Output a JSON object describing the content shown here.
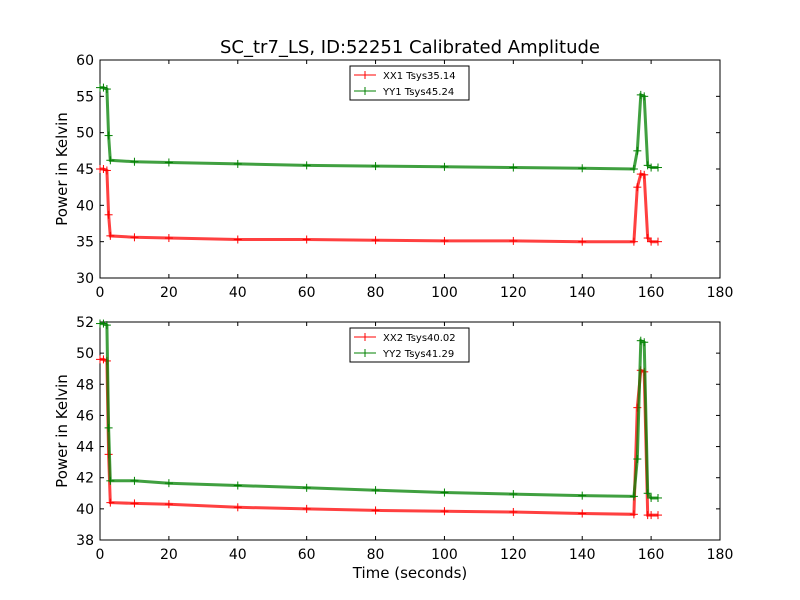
{
  "title": "SC_tr7_LS, ID:52251 Calibrated Amplitude",
  "chart_data": [
    {
      "type": "line",
      "title": "SC_tr7_LS, ID:52251 Calibrated Amplitude",
      "xlabel": "",
      "ylabel": "Power in Kelvin",
      "xlim": [
        0,
        180
      ],
      "ylim": [
        30,
        60
      ],
      "x_ticks": [
        "0",
        "20",
        "40",
        "60",
        "80",
        "100",
        "120",
        "140",
        "160",
        "180"
      ],
      "y_ticks": [
        "30",
        "35",
        "40",
        "45",
        "50",
        "55",
        "60"
      ],
      "grid": false,
      "legend_position": "top-center",
      "series": [
        {
          "name": "XX1 Tsys35.14",
          "color": "#ff0000",
          "x": [
            0,
            1,
            2,
            2.5,
            3,
            10,
            20,
            40,
            60,
            80,
            100,
            120,
            140,
            155,
            156,
            157,
            158,
            159,
            160,
            162
          ],
          "values": [
            45,
            45,
            44.8,
            38.7,
            35.8,
            35.6,
            35.5,
            35.3,
            35.3,
            35.2,
            35.1,
            35.1,
            35.0,
            35.0,
            42.5,
            44.3,
            44.2,
            35.5,
            35.0,
            35.0
          ]
        },
        {
          "name": "YY1 Tsys45.24",
          "color": "#008000",
          "x": [
            0,
            1,
            2,
            2.5,
            3,
            10,
            20,
            40,
            60,
            80,
            100,
            120,
            140,
            155,
            156,
            157,
            158,
            159,
            160,
            162
          ],
          "values": [
            56.2,
            56.2,
            56.0,
            49.6,
            46.2,
            46.0,
            45.9,
            45.7,
            45.5,
            45.4,
            45.3,
            45.2,
            45.1,
            45.0,
            47.5,
            55.2,
            55.0,
            45.5,
            45.2,
            45.2
          ]
        }
      ]
    },
    {
      "type": "line",
      "title": "",
      "xlabel": "Time (seconds)",
      "ylabel": "Power in Kelvin",
      "xlim": [
        0,
        180
      ],
      "ylim": [
        38,
        52
      ],
      "x_ticks": [
        "0",
        "20",
        "40",
        "60",
        "80",
        "100",
        "120",
        "140",
        "160",
        "180"
      ],
      "y_ticks": [
        "38",
        "40",
        "42",
        "44",
        "46",
        "48",
        "50",
        "52"
      ],
      "grid": false,
      "legend_position": "top-center",
      "series": [
        {
          "name": "XX2 Tsys40.02",
          "color": "#ff0000",
          "x": [
            0,
            1,
            2,
            2.5,
            3,
            10,
            20,
            40,
            60,
            80,
            100,
            120,
            140,
            155,
            156,
            157,
            158,
            159,
            160,
            162
          ],
          "values": [
            49.6,
            49.6,
            49.5,
            43.5,
            40.4,
            40.35,
            40.3,
            40.1,
            40.0,
            39.9,
            39.85,
            39.8,
            39.7,
            39.65,
            46.5,
            48.9,
            48.8,
            39.6,
            39.6,
            39.6
          ]
        },
        {
          "name": "YY2 Tsys41.29",
          "color": "#008000",
          "x": [
            0,
            1,
            2,
            2.5,
            3,
            10,
            20,
            40,
            60,
            80,
            100,
            120,
            140,
            155,
            156,
            157,
            158,
            159,
            160,
            162
          ],
          "values": [
            51.9,
            51.9,
            51.8,
            45.2,
            41.8,
            41.8,
            41.65,
            41.5,
            41.35,
            41.2,
            41.05,
            40.95,
            40.85,
            40.8,
            43.2,
            50.8,
            50.7,
            41.0,
            40.7,
            40.7
          ]
        }
      ]
    }
  ]
}
